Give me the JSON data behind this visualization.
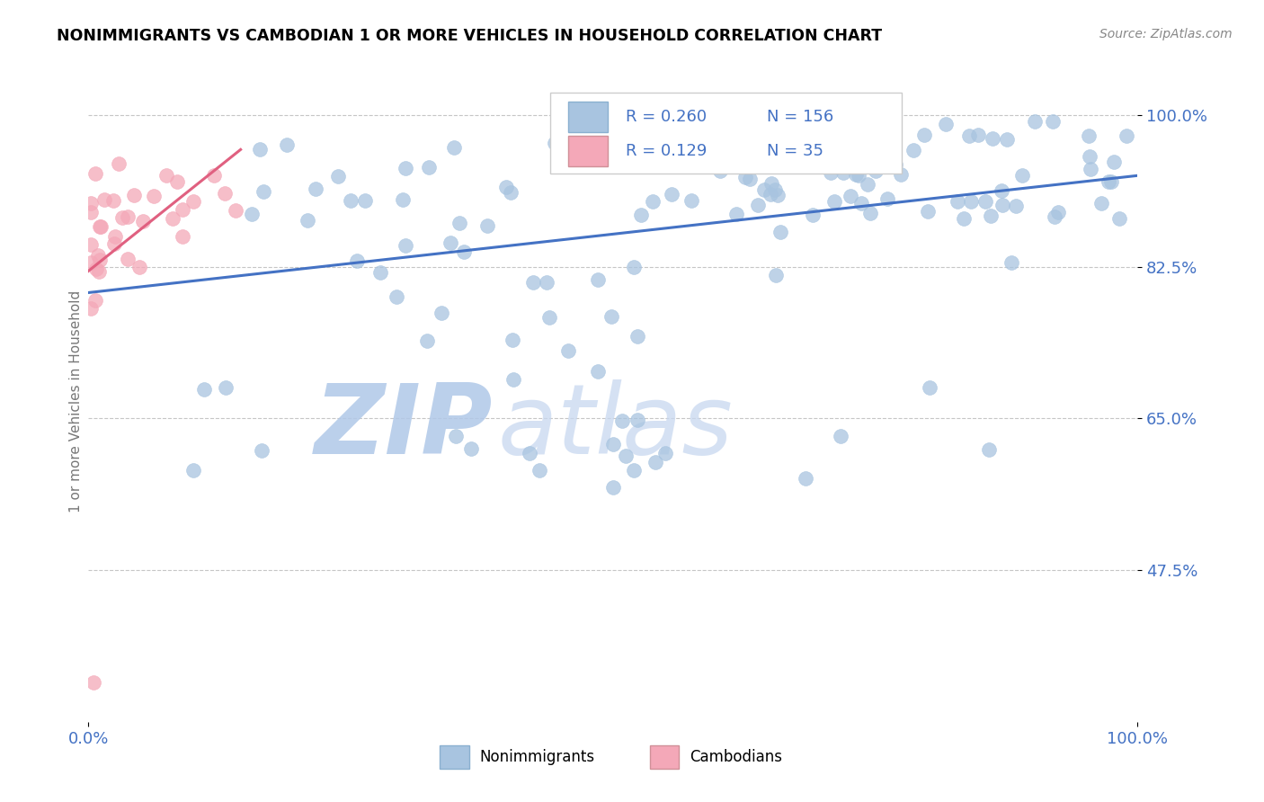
{
  "title": "NONIMMIGRANTS VS CAMBODIAN 1 OR MORE VEHICLES IN HOUSEHOLD CORRELATION CHART",
  "source_text": "Source: ZipAtlas.com",
  "ylabel": "1 or more Vehicles in Household",
  "xlim": [
    0.0,
    1.0
  ],
  "ylim": [
    0.3,
    1.04
  ],
  "yticks": [
    0.475,
    0.65,
    0.825,
    1.0
  ],
  "ytick_labels": [
    "47.5%",
    "65.0%",
    "82.5%",
    "100.0%"
  ],
  "xticks": [
    0.0,
    1.0
  ],
  "xtick_labels": [
    "0.0%",
    "100.0%"
  ],
  "blue_R": 0.26,
  "blue_N": 156,
  "pink_R": 0.129,
  "pink_N": 35,
  "blue_color": "#a8c4e0",
  "pink_color": "#f4a8b8",
  "blue_line_color": "#4472c4",
  "pink_line_color": "#e06080",
  "legend_blue_label": "Nonimmigrants",
  "legend_pink_label": "Cambodians",
  "watermark_zip": "ZIP",
  "watermark_atlas": "atlas",
  "watermark_color": "#c8d8f0",
  "blue_trendline_x": [
    0.0,
    1.0
  ],
  "blue_trendline_y": [
    0.795,
    0.93
  ],
  "pink_trendline_x": [
    0.0,
    0.145
  ],
  "pink_trendline_y": [
    0.82,
    0.96
  ]
}
